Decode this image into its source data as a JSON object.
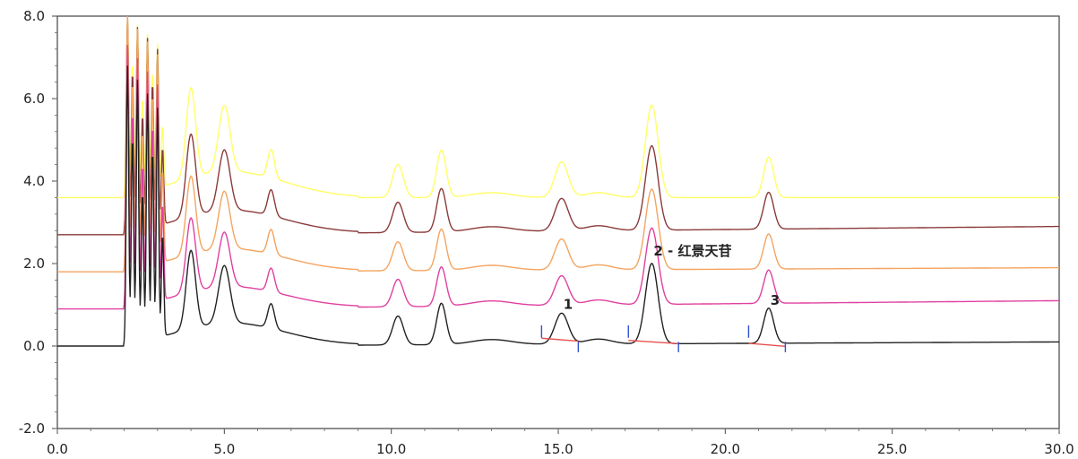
{
  "chart_data": {
    "type": "line",
    "xlim": [
      0,
      30
    ],
    "ylim": [
      -2,
      8
    ],
    "x_ticks": [
      "0.0",
      "5.0",
      "10.0",
      "15.0",
      "20.0",
      "25.0",
      "30.0"
    ],
    "y_ticks": [
      "-2.0",
      "0.0",
      "2.0",
      "4.0",
      "6.0",
      "8.0"
    ],
    "x_tick_values": [
      0,
      5,
      10,
      15,
      20,
      25,
      30
    ],
    "y_tick_values": [
      -2,
      0,
      2,
      4,
      6,
      8
    ],
    "grid": false,
    "colors": {
      "yellow": "#ffff66",
      "brown": "#8b3a3a",
      "orange": "#f4a460",
      "magenta": "#e040a0",
      "black": "#222222",
      "integration_baseline": "#e85050",
      "integration_marks": "#3050d0"
    },
    "series": [
      {
        "color": "yellow",
        "baseline_start": 3.6,
        "baseline_end": 3.6,
        "injection_max": 8.0
      },
      {
        "color": "brown",
        "baseline_start": 2.7,
        "baseline_end": 2.9,
        "injection_max": 8.0
      },
      {
        "color": "orange",
        "baseline_start": 1.8,
        "baseline_end": 1.9,
        "injection_max": 8.0
      },
      {
        "color": "magenta",
        "baseline_start": 0.9,
        "baseline_end": 1.1,
        "injection_max": 7.3
      },
      {
        "color": "black",
        "baseline_start": 0.0,
        "baseline_end": 0.1,
        "injection_max": 6.8
      }
    ],
    "peaks_black": [
      {
        "x": 4.0,
        "height": 1.9
      },
      {
        "x": 5.0,
        "height": 1.4
      },
      {
        "x": 6.4,
        "height": 0.6
      },
      {
        "x": 10.2,
        "height": 0.7
      },
      {
        "x": 11.5,
        "height": 1.0
      },
      {
        "x": 15.1,
        "height": 0.75
      },
      {
        "x": 17.8,
        "height": 1.95
      },
      {
        "x": 21.3,
        "height": 0.85
      }
    ],
    "annotations": [
      {
        "text": "1",
        "x": 15.1,
        "y": 0.9
      },
      {
        "text": "2 - 红景天苷",
        "x": 17.8,
        "y": 2.2
      },
      {
        "text": "3",
        "x": 21.3,
        "y": 1.0
      }
    ],
    "integration": [
      {
        "start": 14.5,
        "end": 15.6
      },
      {
        "start": 17.1,
        "end": 18.6
      },
      {
        "start": 20.7,
        "end": 21.8
      }
    ]
  }
}
